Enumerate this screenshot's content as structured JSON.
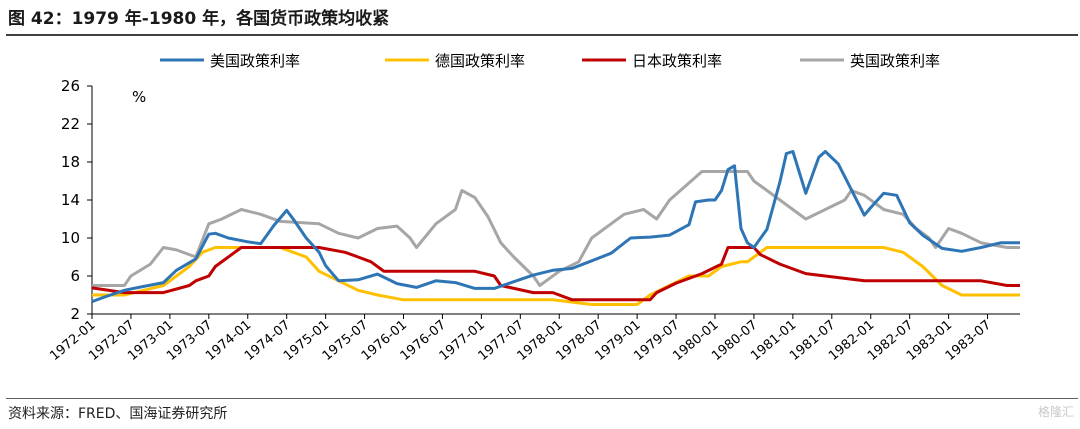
{
  "figure": {
    "title": "图 42：1979 年-1980 年，各国货币政策均收紧",
    "source": "资料来源：FRED、国海证券研究所",
    "watermark": "格隆汇"
  },
  "chart_data": {
    "type": "line",
    "unit": "%",
    "ylim": [
      2,
      26
    ],
    "yticks": [
      2,
      6,
      10,
      14,
      18,
      22,
      26
    ],
    "xlabels": [
      "1972-01",
      "1972-07",
      "1973-01",
      "1973-07",
      "1974-01",
      "1974-07",
      "1975-01",
      "1975-07",
      "1976-01",
      "1976-07",
      "1977-01",
      "1977-07",
      "1978-01",
      "1978-07",
      "1979-01",
      "1979-07",
      "1980-01",
      "1980-07",
      "1981-01",
      "1981-07",
      "1982-01",
      "1982-07",
      "1983-01",
      "1983-07"
    ],
    "grid": false,
    "legend_position": "top",
    "series": [
      {
        "name": "美国政策利率",
        "color": "#2E75B6",
        "points": [
          [
            "1972-01",
            3.3
          ],
          [
            "1972-03",
            3.8
          ],
          [
            "1972-06",
            4.5
          ],
          [
            "1972-09",
            4.9
          ],
          [
            "1972-12",
            5.3
          ],
          [
            "1973-02",
            6.6
          ],
          [
            "1973-05",
            7.8
          ],
          [
            "1973-07",
            10.4
          ],
          [
            "1973-08",
            10.5
          ],
          [
            "1973-10",
            10.0
          ],
          [
            "1974-01",
            9.6
          ],
          [
            "1974-03",
            9.4
          ],
          [
            "1974-05",
            11.3
          ],
          [
            "1974-07",
            12.9
          ],
          [
            "1974-08",
            12.0
          ],
          [
            "1974-10",
            10.0
          ],
          [
            "1974-12",
            8.5
          ],
          [
            "1975-01",
            7.1
          ],
          [
            "1975-03",
            5.5
          ],
          [
            "1975-06",
            5.6
          ],
          [
            "1975-09",
            6.2
          ],
          [
            "1975-12",
            5.2
          ],
          [
            "1976-03",
            4.8
          ],
          [
            "1976-06",
            5.5
          ],
          [
            "1976-09",
            5.3
          ],
          [
            "1976-12",
            4.7
          ],
          [
            "1977-03",
            4.7
          ],
          [
            "1977-06",
            5.4
          ],
          [
            "1977-09",
            6.1
          ],
          [
            "1977-12",
            6.6
          ],
          [
            "1978-03",
            6.8
          ],
          [
            "1978-06",
            7.6
          ],
          [
            "1978-09",
            8.4
          ],
          [
            "1978-12",
            10.0
          ],
          [
            "1979-03",
            10.1
          ],
          [
            "1979-06",
            10.3
          ],
          [
            "1979-09",
            11.4
          ],
          [
            "1979-10",
            13.8
          ],
          [
            "1979-12",
            14.0
          ],
          [
            "1980-01",
            14.0
          ],
          [
            "1980-02",
            15.0
          ],
          [
            "1980-03",
            17.2
          ],
          [
            "1980-04",
            17.6
          ],
          [
            "1980-05",
            11.0
          ],
          [
            "1980-06",
            9.5
          ],
          [
            "1980-07",
            9.0
          ],
          [
            "1980-09",
            10.9
          ],
          [
            "1980-11",
            15.9
          ],
          [
            "1980-12",
            18.9
          ],
          [
            "1981-01",
            19.1
          ],
          [
            "1981-03",
            14.7
          ],
          [
            "1981-05",
            18.5
          ],
          [
            "1981-06",
            19.1
          ],
          [
            "1981-08",
            17.8
          ],
          [
            "1981-10",
            15.1
          ],
          [
            "1981-12",
            12.4
          ],
          [
            "1982-01",
            13.2
          ],
          [
            "1982-03",
            14.7
          ],
          [
            "1982-05",
            14.5
          ],
          [
            "1982-07",
            11.6
          ],
          [
            "1982-09",
            10.3
          ],
          [
            "1982-12",
            8.9
          ],
          [
            "1983-03",
            8.6
          ],
          [
            "1983-06",
            9.0
          ],
          [
            "1983-09",
            9.5
          ],
          [
            "1983-12",
            9.5
          ]
        ]
      },
      {
        "name": "德国政策利率",
        "color": "#FFC000",
        "points": [
          [
            "1972-01",
            4.0
          ],
          [
            "1972-06",
            4.0
          ],
          [
            "1972-09",
            4.5
          ],
          [
            "1972-12",
            5.0
          ],
          [
            "1973-02",
            6.0
          ],
          [
            "1973-04",
            7.0
          ],
          [
            "1973-06",
            8.5
          ],
          [
            "1973-08",
            9.0
          ],
          [
            "1974-01",
            9.0
          ],
          [
            "1974-06",
            9.0
          ],
          [
            "1974-10",
            8.0
          ],
          [
            "1974-12",
            6.5
          ],
          [
            "1975-03",
            5.5
          ],
          [
            "1975-06",
            4.5
          ],
          [
            "1975-09",
            4.0
          ],
          [
            "1976-01",
            3.5
          ],
          [
            "1976-06",
            3.5
          ],
          [
            "1976-12",
            3.5
          ],
          [
            "1977-06",
            3.5
          ],
          [
            "1977-12",
            3.5
          ],
          [
            "1978-06",
            3.0
          ],
          [
            "1978-12",
            3.0
          ],
          [
            "1979-01",
            3.0
          ],
          [
            "1979-03",
            4.0
          ],
          [
            "1979-06",
            5.0
          ],
          [
            "1979-09",
            6.0
          ],
          [
            "1979-12",
            6.0
          ],
          [
            "1980-02",
            7.0
          ],
          [
            "1980-05",
            7.5
          ],
          [
            "1980-06",
            7.5
          ],
          [
            "1980-09",
            9.0
          ],
          [
            "1980-12",
            9.0
          ],
          [
            "1981-06",
            9.0
          ],
          [
            "1981-12",
            9.0
          ],
          [
            "1982-03",
            9.0
          ],
          [
            "1982-06",
            8.5
          ],
          [
            "1982-09",
            7.0
          ],
          [
            "1982-12",
            5.0
          ],
          [
            "1983-03",
            4.0
          ],
          [
            "1983-06",
            4.0
          ],
          [
            "1983-12",
            4.0
          ]
        ]
      },
      {
        "name": "日本政策利率",
        "color": "#C00000",
        "points": [
          [
            "1972-01",
            4.75
          ],
          [
            "1972-06",
            4.25
          ],
          [
            "1972-12",
            4.25
          ],
          [
            "1973-04",
            5.0
          ],
          [
            "1973-05",
            5.5
          ],
          [
            "1973-07",
            6.0
          ],
          [
            "1973-08",
            7.0
          ],
          [
            "1973-12",
            9.0
          ],
          [
            "1974-06",
            9.0
          ],
          [
            "1974-12",
            9.0
          ],
          [
            "1975-04",
            8.5
          ],
          [
            "1975-06",
            8.0
          ],
          [
            "1975-08",
            7.5
          ],
          [
            "1975-10",
            6.5
          ],
          [
            "1976-06",
            6.5
          ],
          [
            "1976-12",
            6.5
          ],
          [
            "1977-03",
            6.0
          ],
          [
            "1977-04",
            5.0
          ],
          [
            "1977-09",
            4.25
          ],
          [
            "1977-12",
            4.25
          ],
          [
            "1978-03",
            3.5
          ],
          [
            "1978-12",
            3.5
          ],
          [
            "1979-03",
            3.5
          ],
          [
            "1979-04",
            4.25
          ],
          [
            "1979-07",
            5.25
          ],
          [
            "1979-11",
            6.25
          ],
          [
            "1980-02",
            7.25
          ],
          [
            "1980-03",
            9.0
          ],
          [
            "1980-07",
            9.0
          ],
          [
            "1980-08",
            8.25
          ],
          [
            "1980-11",
            7.25
          ],
          [
            "1981-03",
            6.25
          ],
          [
            "1981-12",
            5.5
          ],
          [
            "1982-06",
            5.5
          ],
          [
            "1982-12",
            5.5
          ],
          [
            "1983-06",
            5.5
          ],
          [
            "1983-10",
            5.0
          ],
          [
            "1983-12",
            5.0
          ]
        ]
      },
      {
        "name": "英国政策利率",
        "color": "#A6A6A6",
        "points": [
          [
            "1972-01",
            5.0
          ],
          [
            "1972-06",
            5.0
          ],
          [
            "1972-07",
            6.0
          ],
          [
            "1972-10",
            7.25
          ],
          [
            "1972-12",
            9.0
          ],
          [
            "1973-02",
            8.75
          ],
          [
            "1973-05",
            8.0
          ],
          [
            "1973-07",
            11.5
          ],
          [
            "1973-09",
            12.0
          ],
          [
            "1973-12",
            13.0
          ],
          [
            "1974-03",
            12.5
          ],
          [
            "1974-06",
            11.75
          ],
          [
            "1974-12",
            11.5
          ],
          [
            "1975-03",
            10.5
          ],
          [
            "1975-06",
            10.0
          ],
          [
            "1975-09",
            11.0
          ],
          [
            "1975-12",
            11.25
          ],
          [
            "1976-02",
            10.0
          ],
          [
            "1976-03",
            9.0
          ],
          [
            "1976-06",
            11.5
          ],
          [
            "1976-09",
            13.0
          ],
          [
            "1976-10",
            15.0
          ],
          [
            "1976-12",
            14.25
          ],
          [
            "1977-02",
            12.25
          ],
          [
            "1977-04",
            9.5
          ],
          [
            "1977-06",
            8.0
          ],
          [
            "1977-09",
            6.0
          ],
          [
            "1977-10",
            5.0
          ],
          [
            "1978-01",
            6.5
          ],
          [
            "1978-04",
            7.5
          ],
          [
            "1978-06",
            10.0
          ],
          [
            "1978-11",
            12.5
          ],
          [
            "1979-02",
            13.0
          ],
          [
            "1979-04",
            12.0
          ],
          [
            "1979-06",
            14.0
          ],
          [
            "1979-11",
            17.0
          ],
          [
            "1980-06",
            17.0
          ],
          [
            "1980-07",
            16.0
          ],
          [
            "1980-11",
            14.0
          ],
          [
            "1981-03",
            12.0
          ],
          [
            "1981-09",
            14.0
          ],
          [
            "1981-10",
            15.0
          ],
          [
            "1981-12",
            14.5
          ],
          [
            "1982-03",
            13.0
          ],
          [
            "1982-06",
            12.5
          ],
          [
            "1982-08",
            11.0
          ],
          [
            "1982-10",
            10.0
          ],
          [
            "1982-11",
            9.0
          ],
          [
            "1983-01",
            11.0
          ],
          [
            "1983-03",
            10.5
          ],
          [
            "1983-06",
            9.5
          ],
          [
            "1983-10",
            9.0
          ],
          [
            "1983-12",
            9.0
          ]
        ]
      }
    ]
  }
}
